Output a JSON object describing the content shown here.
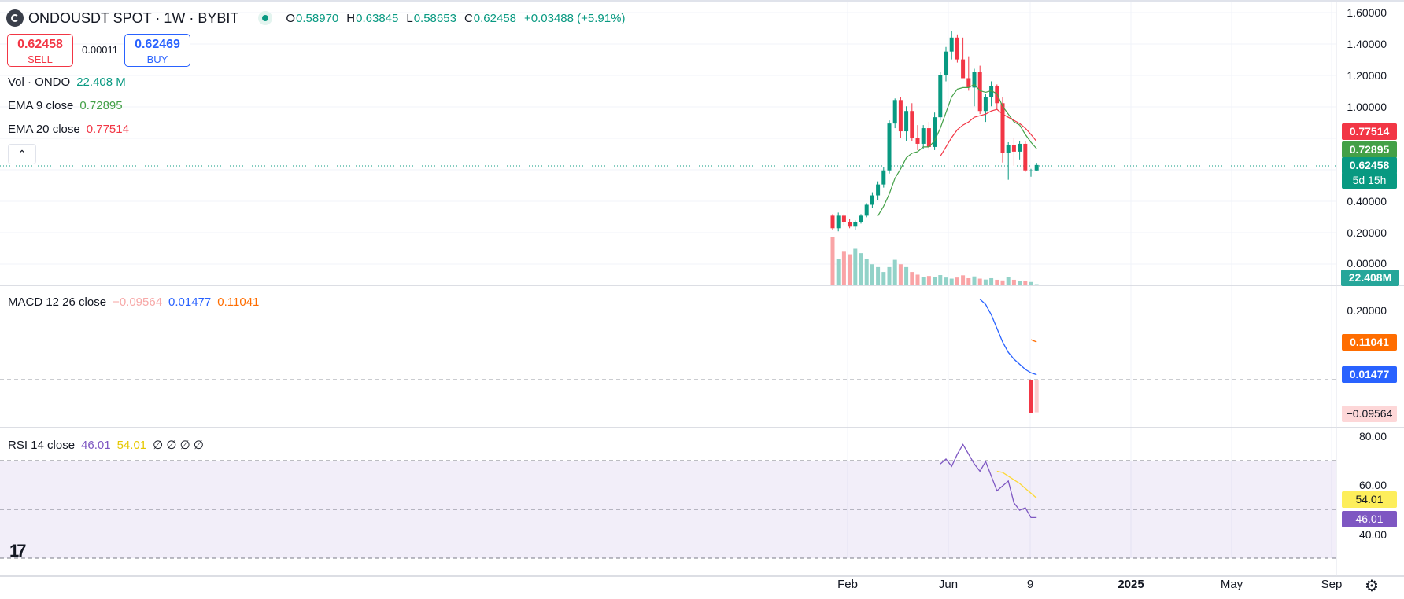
{
  "header": {
    "symbol": "ONDOUSDT SPOT · 1W · BYBIT",
    "o_label": "O",
    "o": "0.58970",
    "h_label": "H",
    "h": "0.63845",
    "l_label": "L",
    "l": "0.58653",
    "c_label": "C",
    "c": "0.62458",
    "change": "+0.03488 (+5.91%)"
  },
  "trade": {
    "sell_price": "0.62458",
    "sell_label": "SELL",
    "spread": "0.00011",
    "buy_price": "0.62469",
    "buy_label": "BUY"
  },
  "legends": {
    "vol_label": "Vol · ONDO",
    "vol_value": "22.408 M",
    "ema9_label": "EMA 9 close",
    "ema9_value": "0.72895",
    "ema20_label": "EMA 20 close",
    "ema20_value": "0.77514",
    "macd_label": "MACD 12 26 close",
    "macd_hist": "−0.09564",
    "macd_line": "0.01477",
    "macd_signal": "0.11041",
    "rsi_label": "RSI 14 close",
    "rsi_value": "46.01",
    "rsi_ma": "54.01",
    "rsi_extra": "∅ ∅ ∅ ∅"
  },
  "price_axis": [
    "1.60000",
    "1.40000",
    "1.20000",
    "1.00000",
    "0.40000",
    "0.20000",
    "0.00000"
  ],
  "macd_axis": [
    "0.20000"
  ],
  "rsi_axis": [
    "80.00",
    "60.00",
    "40.00"
  ],
  "badges": {
    "ema20": "0.77514",
    "ema9": "0.72895",
    "price": "0.62458",
    "countdown": "5d 15h",
    "volume": "22.408M",
    "macd_signal": "0.11041",
    "macd_line": "0.01477",
    "macd_hist": "−0.09564",
    "rsi_ma": "54.01",
    "rsi": "46.01"
  },
  "time_axis": [
    "Feb",
    "Jun",
    "9",
    "2025",
    "May",
    "Sep"
  ],
  "colors": {
    "up": "#089981",
    "down": "#f23645",
    "ema9": "#43a047",
    "ema20": "#f23645",
    "macd_line": "#2962ff",
    "macd_signal": "#ff6d00",
    "rsi": "#7e57c2",
    "rsi_ma": "#fdd835"
  },
  "icons": [
    "collapse-up-icon",
    "tradingview-logo-icon",
    "settings-gear-icon",
    "live-status-icon",
    "symbol-logo-icon"
  ],
  "chart_data": {
    "type": "candlestick",
    "candles": [
      {
        "o": 0.3,
        "h": 0.31,
        "l": 0.21,
        "c": 0.22
      },
      {
        "o": 0.22,
        "h": 0.32,
        "l": 0.2,
        "c": 0.3
      },
      {
        "o": 0.3,
        "h": 0.31,
        "l": 0.24,
        "c": 0.26
      },
      {
        "o": 0.26,
        "h": 0.28,
        "l": 0.22,
        "c": 0.23
      },
      {
        "o": 0.23,
        "h": 0.27,
        "l": 0.21,
        "c": 0.26
      },
      {
        "o": 0.26,
        "h": 0.31,
        "l": 0.25,
        "c": 0.3
      },
      {
        "o": 0.3,
        "h": 0.38,
        "l": 0.29,
        "c": 0.37
      },
      {
        "o": 0.37,
        "h": 0.45,
        "l": 0.35,
        "c": 0.43
      },
      {
        "o": 0.43,
        "h": 0.52,
        "l": 0.4,
        "c": 0.5
      },
      {
        "o": 0.5,
        "h": 0.61,
        "l": 0.48,
        "c": 0.59
      },
      {
        "o": 0.59,
        "h": 0.91,
        "l": 0.57,
        "c": 0.89
      },
      {
        "o": 0.89,
        "h": 1.05,
        "l": 0.86,
        "c": 1.04
      },
      {
        "o": 1.04,
        "h": 1.06,
        "l": 0.8,
        "c": 0.84
      },
      {
        "o": 0.84,
        "h": 1.0,
        "l": 0.78,
        "c": 0.97
      },
      {
        "o": 0.97,
        "h": 1.02,
        "l": 0.78,
        "c": 0.8
      },
      {
        "o": 0.8,
        "h": 0.88,
        "l": 0.72,
        "c": 0.76
      },
      {
        "o": 0.76,
        "h": 0.88,
        "l": 0.73,
        "c": 0.86
      },
      {
        "o": 0.86,
        "h": 0.9,
        "l": 0.72,
        "c": 0.74
      },
      {
        "o": 0.74,
        "h": 0.96,
        "l": 0.72,
        "c": 0.93
      },
      {
        "o": 0.93,
        "h": 1.22,
        "l": 0.91,
        "c": 1.2
      },
      {
        "o": 1.2,
        "h": 1.38,
        "l": 1.16,
        "c": 1.35
      },
      {
        "o": 1.35,
        "h": 1.48,
        "l": 1.3,
        "c": 1.44
      },
      {
        "o": 1.44,
        "h": 1.46,
        "l": 1.28,
        "c": 1.3
      },
      {
        "o": 1.3,
        "h": 1.44,
        "l": 1.18,
        "c": 1.18
      },
      {
        "o": 1.18,
        "h": 1.32,
        "l": 1.1,
        "c": 1.12
      },
      {
        "o": 1.12,
        "h": 1.24,
        "l": 1.0,
        "c": 1.22
      },
      {
        "o": 1.22,
        "h": 1.26,
        "l": 0.95,
        "c": 0.97
      },
      {
        "o": 0.97,
        "h": 1.08,
        "l": 0.9,
        "c": 1.06
      },
      {
        "o": 1.06,
        "h": 1.16,
        "l": 1.0,
        "c": 1.13
      },
      {
        "o": 1.13,
        "h": 1.14,
        "l": 0.98,
        "c": 1.02
      },
      {
        "o": 1.02,
        "h": 1.06,
        "l": 0.64,
        "c": 0.7
      },
      {
        "o": 0.7,
        "h": 0.77,
        "l": 0.53,
        "c": 0.75
      },
      {
        "o": 0.75,
        "h": 0.8,
        "l": 0.62,
        "c": 0.71
      },
      {
        "o": 0.71,
        "h": 0.78,
        "l": 0.66,
        "c": 0.76
      },
      {
        "o": 0.76,
        "h": 0.78,
        "l": 0.58,
        "c": 0.59
      },
      {
        "o": 0.59,
        "h": 0.6,
        "l": 0.55,
        "c": 0.59
      },
      {
        "o": 0.5897,
        "h": 0.63845,
        "l": 0.58653,
        "c": 0.62458
      }
    ],
    "volume": [
      220,
      120,
      155,
      140,
      165,
      145,
      120,
      95,
      82,
      60,
      82,
      115,
      95,
      82,
      60,
      48,
      38,
      42,
      38,
      46,
      35,
      30,
      35,
      45,
      32,
      40,
      30,
      26,
      32,
      25,
      22,
      38,
      25,
      20,
      18,
      15,
      5
    ],
    "ema9": [
      null,
      null,
      null,
      null,
      null,
      null,
      null,
      null,
      0.3,
      0.36,
      0.44,
      0.54,
      0.6,
      0.67,
      0.7,
      0.71,
      0.74,
      0.74,
      0.78,
      0.86,
      0.96,
      1.06,
      1.11,
      1.12,
      1.12,
      1.14,
      1.1,
      1.09,
      1.1,
      1.08,
      1.0,
      0.95,
      0.9,
      0.88,
      0.82,
      0.77,
      0.729
    ],
    "ema20": [
      null,
      null,
      null,
      null,
      null,
      null,
      null,
      null,
      null,
      null,
      null,
      null,
      null,
      null,
      null,
      null,
      null,
      null,
      null,
      0.68,
      0.74,
      0.8,
      0.85,
      0.88,
      0.9,
      0.93,
      0.94,
      0.95,
      0.97,
      0.98,
      0.95,
      0.93,
      0.91,
      0.89,
      0.86,
      0.82,
      0.775
    ],
    "macd_line": [
      null,
      null,
      null,
      null,
      null,
      null,
      null,
      null,
      null,
      null,
      null,
      null,
      null,
      null,
      null,
      null,
      null,
      null,
      null,
      null,
      null,
      null,
      null,
      null,
      null,
      null,
      0.235,
      0.22,
      0.19,
      0.15,
      0.11,
      0.08,
      0.06,
      0.045,
      0.03,
      0.02,
      0.01477
    ],
    "macd_signal": [
      null,
      null,
      null,
      null,
      null,
      null,
      null,
      null,
      null,
      null,
      null,
      null,
      null,
      null,
      null,
      null,
      null,
      null,
      null,
      null,
      null,
      null,
      null,
      null,
      null,
      null,
      null,
      null,
      null,
      null,
      null,
      null,
      null,
      null,
      null,
      0.117,
      0.11041
    ],
    "macd_hist": [
      null,
      null,
      null,
      null,
      null,
      null,
      null,
      null,
      null,
      null,
      null,
      null,
      null,
      null,
      null,
      null,
      null,
      null,
      null,
      null,
      null,
      null,
      null,
      null,
      null,
      null,
      null,
      null,
      null,
      null,
      null,
      null,
      null,
      null,
      null,
      -0.097,
      -0.09564
    ],
    "rsi": [
      null,
      null,
      null,
      null,
      null,
      null,
      null,
      null,
      null,
      null,
      null,
      null,
      null,
      null,
      null,
      null,
      null,
      null,
      null,
      68,
      70,
      67,
      72,
      76,
      72,
      68,
      65,
      69,
      63,
      57,
      59,
      61,
      52,
      49,
      50,
      46,
      46.01
    ],
    "rsi_ma": [
      null,
      null,
      null,
      null,
      null,
      null,
      null,
      null,
      null,
      null,
      null,
      null,
      null,
      null,
      null,
      null,
      null,
      null,
      null,
      null,
      null,
      null,
      null,
      null,
      null,
      null,
      null,
      null,
      null,
      65,
      64.5,
      63,
      61.5,
      60,
      58,
      56,
      54.01
    ],
    "price_range": [
      0,
      1.6
    ],
    "macd_range": [
      -0.1,
      0.27
    ],
    "rsi_range": [
      35,
      82
    ]
  }
}
